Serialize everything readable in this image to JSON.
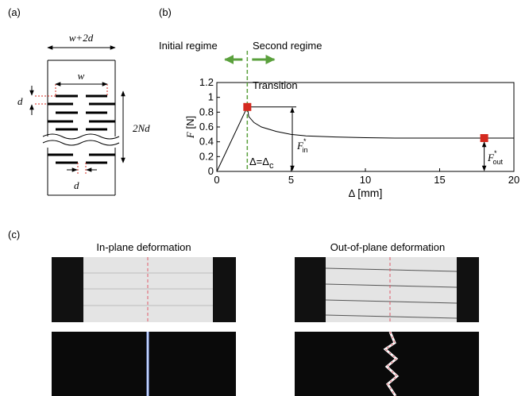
{
  "panel_labels": [
    "(a)",
    "(b)",
    "(c)"
  ],
  "schematic": {
    "top_width": "w+2d",
    "slit_width": "w",
    "gap_left": "d",
    "height": "2Nd",
    "gap_bottom": "d"
  },
  "chart_data": {
    "type": "line",
    "xlabel": {
      "symbol": "Δ",
      "unit": "[mm]"
    },
    "ylabel": {
      "symbol": "F",
      "unit": "[N]"
    },
    "xlim": [
      0,
      20
    ],
    "xticks": [
      0,
      5,
      10,
      15,
      20
    ],
    "ylim": [
      0,
      1.2
    ],
    "yticks": [
      0,
      0.2,
      0.4,
      0.6,
      0.8,
      1,
      1.2
    ],
    "series": [
      {
        "color": "#000000",
        "x": [
          0,
          2.05,
          2.15,
          2.5,
          3,
          4,
          5,
          6,
          8,
          10,
          12,
          15,
          18,
          20
        ],
        "values": [
          0,
          0.87,
          0.74,
          0.66,
          0.6,
          0.54,
          0.5,
          0.48,
          0.465,
          0.455,
          0.45,
          0.45,
          0.45,
          0.45
        ]
      }
    ],
    "markers": {
      "color": "#d42a1f",
      "x": [
        2.05,
        18
      ],
      "values": [
        0.87,
        0.45
      ]
    },
    "regime_color": "#5aa03c",
    "annotations": {
      "regimes": [
        "Initial regime",
        "Second regime"
      ],
      "transition": "Transition",
      "delta_c": {
        "text": "Δ=Δ",
        "sub": "c"
      },
      "f_in": {
        "symbol": "F",
        "sub": "in",
        "sup": "*"
      },
      "f_out": {
        "symbol": "F",
        "sub": "out",
        "sup": "*"
      }
    }
  },
  "photos": {
    "titles": [
      "In-plane deformation",
      "Out-of-plane deformation"
    ]
  }
}
